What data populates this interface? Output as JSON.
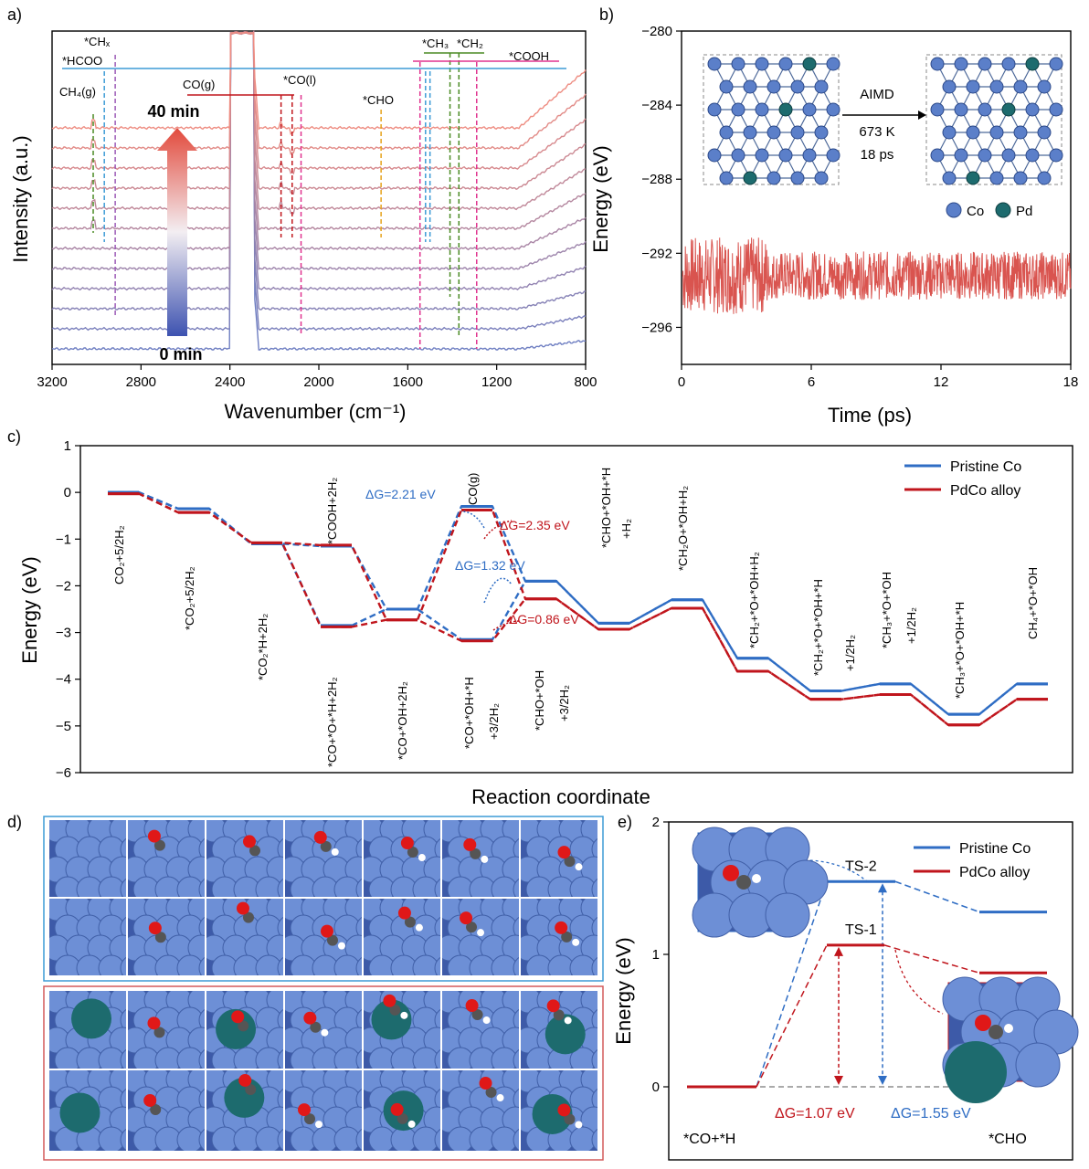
{
  "colors": {
    "blue": "#2f6dc4",
    "red": "#c0151c",
    "cobalt_atom": "#5b7fc9",
    "pd_atom": "#1d6b6e",
    "spectrum_cold": "#6f7fc2",
    "spectrum_warm": "#ee8d82",
    "aimd_trace": "#d9544f",
    "cyan_line": "#3d9bd6",
    "purple": "#9b59b6",
    "green": "#4a8a24",
    "orange": "#e6a21b",
    "magenta": "#e0338f"
  },
  "panel_a": {
    "panel_label": "a)",
    "chart_data": {
      "type": "line",
      "xlabel": "Wavenumber (cm⁻¹)",
      "ylabel": "Intensity (a.u.)",
      "xlim": [
        3200,
        800
      ],
      "x_ticks": [
        "3200",
        "2800",
        "2400",
        "2000",
        "1600",
        "1200",
        "800"
      ],
      "n_spectra": 12,
      "time_start": "0 min",
      "time_end": "40 min",
      "bands": [
        {
          "label": "CH₄(g)",
          "x": 3015
        },
        {
          "label": "*CHₓ",
          "x": 2916
        },
        {
          "label": "*HCOO",
          "x": 2965
        },
        {
          "label": "CO(g)",
          "x": 2170
        },
        {
          "label": "CO(g)",
          "x": 2120
        },
        {
          "label": "*CO(l)",
          "x": 2080
        },
        {
          "label": "*CHO",
          "x": 1720
        },
        {
          "label": "*COOH",
          "x": 1545
        },
        {
          "label": "*HCOO",
          "x": 1520
        },
        {
          "label": "*HCOO",
          "x": 1500
        },
        {
          "label": "*CH₃",
          "x": 1410
        },
        {
          "label": "*CH₂",
          "x": 1370
        },
        {
          "label": "*COOH",
          "x": 1290
        }
      ],
      "labels": {
        "ch4g": "CH₄(g)",
        "chx": "*CHₓ",
        "hcoo": "*HCOO",
        "cog": "CO(g)",
        "col": "*CO(l)",
        "cho": "*CHO",
        "ch3": "*CH₃",
        "ch2": "*CH₂",
        "cooh": "*COOH"
      }
    }
  },
  "panel_b": {
    "panel_label": "b)",
    "chart_data": {
      "type": "line",
      "xlabel": "Time (ps)",
      "ylabel": "Energy (eV)",
      "xlim": [
        0,
        18
      ],
      "ylim": [
        -298,
        -280
      ],
      "x_ticks": [
        "0",
        "6",
        "12",
        "18"
      ],
      "y_ticks": [
        "−280",
        "−284",
        "−288",
        "−292",
        "−296"
      ],
      "series": [
        {
          "mean": -293.2,
          "fluct": 1.3
        }
      ]
    },
    "inset": {
      "arrow_top": "AIMD",
      "arrow_mid": "673 K",
      "arrow_bot": "18 ps",
      "legend_co": "Co",
      "legend_pd": "Pd"
    }
  },
  "panel_c": {
    "panel_label": "c)",
    "chart_data": {
      "type": "line",
      "xlabel": "Reaction coordinate",
      "ylabel": "Energy (eV)",
      "ylim": [
        -6,
        1
      ],
      "y_ticks": [
        "1",
        "0",
        "−1",
        "−2",
        "−3",
        "−4",
        "−5",
        "−6"
      ],
      "series": [
        {
          "name": "Pristine Co",
          "upper": [
            0,
            -0.35,
            -1.1,
            -1.15,
            -2.5,
            -0.3,
            -1.9,
            -2.8,
            -2.3,
            -3.55,
            -4.25,
            -4.1,
            -4.75,
            -4.1
          ],
          "lower": [
            0,
            -0.35,
            -1.1,
            -2.85,
            -2.5,
            -3.15,
            -1.9,
            -2.8,
            -2.3,
            -3.55,
            -4.25,
            -4.1,
            -4.75,
            -4.1
          ]
        },
        {
          "name": "PdCo alloy",
          "upper": [
            0,
            -0.4,
            -1.05,
            -1.1,
            -2.7,
            -0.35,
            -2.25,
            -2.9,
            -2.45,
            -3.8,
            -4.4,
            -4.3,
            -4.95,
            -4.4
          ],
          "lower": [
            0,
            -0.4,
            -1.05,
            -2.85,
            -2.7,
            -3.15,
            -2.25,
            -2.9,
            -2.45,
            -3.8,
            -4.4,
            -4.3,
            -4.95,
            -4.4
          ]
        }
      ],
      "annotations": [
        {
          "text": "ΔG=2.21 eV",
          "color": "blue"
        },
        {
          "text": "ΔG=2.35 eV",
          "color": "red"
        },
        {
          "text": "ΔG=1.32 eV",
          "color": "blue"
        },
        {
          "text": "ΔG=0.86 eV",
          "color": "red"
        }
      ],
      "state_labels": [
        "CO₂+5/2H₂",
        "*CO₂+5/2H₂",
        "*CO₂*H+2H₂",
        "*COOH+2H₂",
        "*CO+*O+*H+2H₂",
        "*CO+*OH+2H₂",
        "CO(g)",
        "*CO+*OH+*H",
        "+3/2H₂",
        "*CHO+*OH",
        "+3/2H₂",
        "*CHO+*OH+*H",
        "+H₂",
        "*CH₂O+*OH+H₂",
        "*CH₂+*O+*OH+H₂",
        "*CH₂+*O+*OH+*H",
        "+1/2H₂",
        "*CH₃+*O+*OH",
        "+1/2H₂",
        "*CH₃+*O+*OH+*H",
        "CH₄+*O+*OH"
      ]
    }
  },
  "panel_d": {
    "panel_label": "d)"
  },
  "panel_e": {
    "panel_label": "e)",
    "chart_data": {
      "type": "line",
      "ylabel": "Energy (eV)",
      "ylim": [
        -0.3,
        2
      ],
      "y_ticks": [
        "2",
        "1",
        "0"
      ],
      "series": [
        {
          "name": "Pristine Co",
          "initial": 0,
          "ts": 1.55,
          "final": 1.32,
          "ts_label": "TS-2"
        },
        {
          "name": "PdCo alloy",
          "initial": 0,
          "ts": 1.07,
          "final": 0.86,
          "ts_label": "TS-1"
        }
      ],
      "dg_red": "ΔG=1.07 eV",
      "dg_blue": "ΔG=1.55 eV",
      "initial_label": "*CO+*H",
      "final_label": "*CHO"
    }
  }
}
